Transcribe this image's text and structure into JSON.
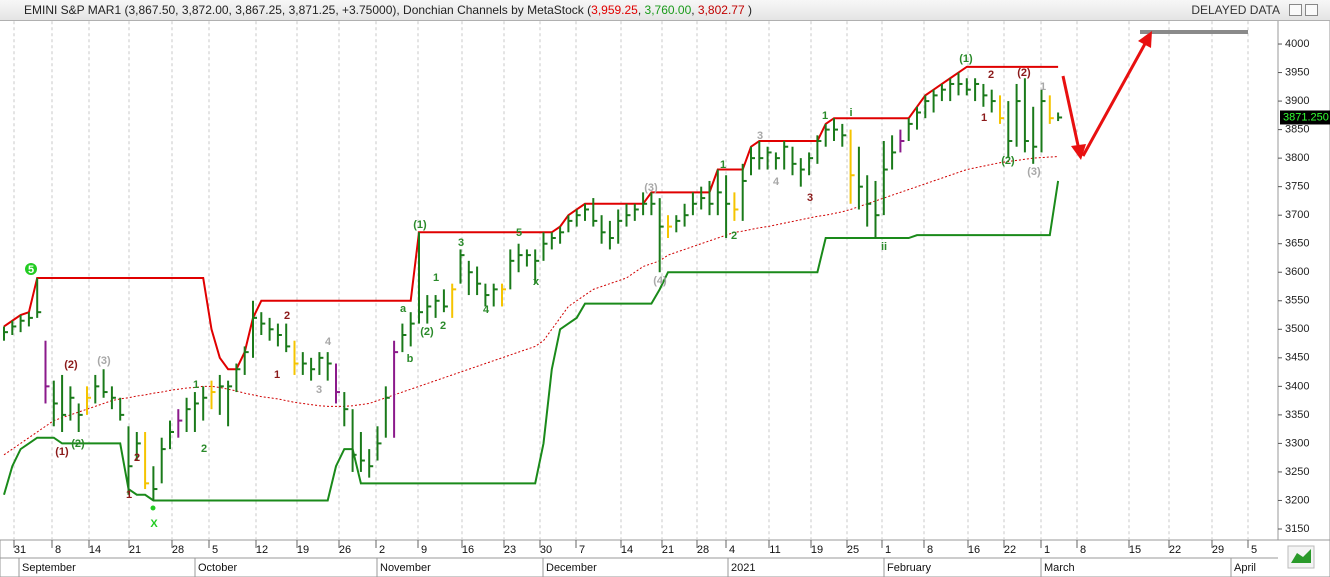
{
  "header": {
    "quote": "EMINI S&P MAR1 (3,867.50, 3,872.00, 3,867.25, 3,871.25, +3.75000), Donchian Channels by MetaStock (",
    "upper": "3,959.25",
    "sep": ", ",
    "lower": "3,760.00",
    "middle": "3,802.77",
    "end": " )",
    "status": "DELAYED DATA"
  },
  "chart_data": {
    "type": "ohlc",
    "ylim": [
      3130,
      4040
    ],
    "yticks": [
      3150,
      3200,
      3250,
      3300,
      3350,
      3400,
      3450,
      3500,
      3550,
      3600,
      3650,
      3700,
      3750,
      3800,
      3850,
      3900,
      3950,
      4000
    ],
    "day_labels": [
      "31",
      "8",
      "14",
      "21",
      "28",
      "5",
      "12",
      "19",
      "26",
      "2",
      "9",
      "16",
      "23",
      "30",
      "7",
      "14",
      "21",
      "28",
      "4",
      "11",
      "19",
      "25",
      "1",
      "8",
      "16",
      "22",
      "1",
      "8",
      "15",
      "22",
      "29",
      "5"
    ],
    "month_labels": [
      "September",
      "October",
      "November",
      "December",
      "2021",
      "February",
      "March",
      "April"
    ],
    "high": [
      3505,
      3515,
      3525,
      3530,
      3590,
      3480,
      3410,
      3420,
      3400,
      3370,
      3400,
      3420,
      3430,
      3400,
      3380,
      3330,
      3320,
      3320,
      3260,
      3310,
      3340,
      3360,
      3380,
      3390,
      3400,
      3410,
      3420,
      3410,
      3440,
      3470,
      3550,
      3530,
      3520,
      3510,
      3510,
      3480,
      3460,
      3450,
      3460,
      3460,
      3440,
      3390,
      3360,
      3320,
      3290,
      3330,
      3400,
      3480,
      3510,
      3530,
      3670,
      3560,
      3560,
      3570,
      3580,
      3640,
      3620,
      3610,
      3580,
      3580,
      3580,
      3640,
      3650,
      3640,
      3640,
      3670,
      3670,
      3680,
      3700,
      3710,
      3720,
      3730,
      3700,
      3690,
      3710,
      3720,
      3720,
      3740,
      3740,
      3730,
      3700,
      3700,
      3720,
      3740,
      3750,
      3760,
      3780,
      3770,
      3740,
      3790,
      3820,
      3830,
      3820,
      3810,
      3830,
      3820,
      3800,
      3810,
      3840,
      3860,
      3870,
      3860,
      3850,
      3820,
      3770,
      3760,
      3830,
      3840,
      3850,
      3870,
      3890,
      3910,
      3920,
      3930,
      3940,
      3950,
      3940,
      3940,
      3930,
      3920,
      3910,
      3900,
      3930,
      3940,
      3890,
      3920,
      3910,
      3880
    ],
    "low": [
      3480,
      3490,
      3495,
      3505,
      3520,
      3370,
      3330,
      3320,
      3340,
      3320,
      3350,
      3370,
      3380,
      3360,
      3340,
      3210,
      3270,
      3220,
      3200,
      3230,
      3290,
      3310,
      3320,
      3320,
      3340,
      3360,
      3350,
      3330,
      3390,
      3420,
      3450,
      3490,
      3480,
      3470,
      3460,
      3420,
      3420,
      3410,
      3420,
      3410,
      3370,
      3330,
      3250,
      3250,
      3240,
      3270,
      3310,
      3310,
      3460,
      3470,
      3510,
      3510,
      3520,
      3530,
      3520,
      3580,
      3560,
      3560,
      3540,
      3540,
      3540,
      3570,
      3600,
      3610,
      3580,
      3620,
      3640,
      3650,
      3670,
      3680,
      3690,
      3680,
      3650,
      3640,
      3650,
      3680,
      3690,
      3700,
      3700,
      3600,
      3660,
      3670,
      3680,
      3700,
      3710,
      3700,
      3700,
      3660,
      3690,
      3690,
      3770,
      3780,
      3780,
      3780,
      3780,
      3770,
      3750,
      3770,
      3790,
      3820,
      3830,
      3820,
      3720,
      3710,
      3680,
      3660,
      3700,
      3780,
      3810,
      3830,
      3850,
      3870,
      3880,
      3900,
      3900,
      3910,
      3910,
      3900,
      3890,
      3880,
      3860,
      3800,
      3820,
      3810,
      3790,
      3810,
      3860,
      3865
    ],
    "close": [
      3495,
      3505,
      3515,
      3520,
      3530,
      3400,
      3370,
      3350,
      3380,
      3350,
      3380,
      3400,
      3390,
      3380,
      3350,
      3260,
      3300,
      3230,
      3220,
      3290,
      3320,
      3340,
      3360,
      3370,
      3380,
      3390,
      3400,
      3400,
      3430,
      3460,
      3520,
      3510,
      3500,
      3490,
      3470,
      3440,
      3440,
      3430,
      3450,
      3440,
      3390,
      3360,
      3280,
      3270,
      3260,
      3300,
      3380,
      3460,
      3490,
      3510,
      3530,
      3540,
      3550,
      3540,
      3570,
      3630,
      3600,
      3580,
      3560,
      3570,
      3570,
      3620,
      3630,
      3630,
      3620,
      3650,
      3660,
      3670,
      3690,
      3700,
      3710,
      3690,
      3670,
      3660,
      3690,
      3700,
      3710,
      3720,
      3720,
      3680,
      3680,
      3690,
      3700,
      3720,
      3730,
      3720,
      3740,
      3720,
      3710,
      3760,
      3800,
      3800,
      3810,
      3800,
      3820,
      3790,
      3780,
      3800,
      3830,
      3850,
      3850,
      3840,
      3770,
      3750,
      3720,
      3700,
      3780,
      3810,
      3830,
      3860,
      3880,
      3900,
      3910,
      3920,
      3930,
      3930,
      3920,
      3930,
      3910,
      3900,
      3870,
      3830,
      3900,
      3830,
      3820,
      3900,
      3870,
      3871.25
    ],
    "last_price_label": "3871.250",
    "bar_colors": [
      "#1a7a1a",
      "#1a7a1a",
      "#1a7a1a",
      "#1a7a1a",
      "#1a7a1a",
      "#8b1a8b",
      "#1a7a1a",
      "#1a7a1a",
      "#1a7a1a",
      "#1a7a1a",
      "#f5c400",
      "#1a7a1a",
      "#1a7a1a",
      "#1a7a1a",
      "#1a7a1a",
      "#1a7a1a",
      "#1a7a1a",
      "#f5c400",
      "#1a7a1a",
      "#1a7a1a",
      "#1a7a1a",
      "#8b1a8b",
      "#1a7a1a",
      "#1a7a1a",
      "#1a7a1a",
      "#f5c400",
      "#1a7a1a",
      "#1a7a1a",
      "#1a7a1a",
      "#1a7a1a",
      "#1a7a1a",
      "#1a7a1a",
      "#1a7a1a",
      "#1a7a1a",
      "#1a7a1a",
      "#f5c400",
      "#1a7a1a",
      "#1a7a1a",
      "#1a7a1a",
      "#1a7a1a",
      "#8b1a8b",
      "#1a7a1a",
      "#1a7a1a",
      "#1a7a1a",
      "#1a7a1a",
      "#1a7a1a",
      "#1a7a1a",
      "#8b1a8b",
      "#1a7a1a",
      "#1a7a1a",
      "#1a7a1a",
      "#1a7a1a",
      "#1a7a1a",
      "#1a7a1a",
      "#f5c400",
      "#1a7a1a",
      "#1a7a1a",
      "#1a7a1a",
      "#1a7a1a",
      "#1a7a1a",
      "#f5c400",
      "#1a7a1a",
      "#1a7a1a",
      "#1a7a1a",
      "#1a7a1a",
      "#1a7a1a",
      "#1a7a1a",
      "#1a7a1a",
      "#1a7a1a",
      "#1a7a1a",
      "#1a7a1a",
      "#1a7a1a",
      "#1a7a1a",
      "#1a7a1a",
      "#1a7a1a",
      "#1a7a1a",
      "#1a7a1a",
      "#1a7a1a",
      "#1a7a1a",
      "#1a7a1a",
      "#f5c400",
      "#1a7a1a",
      "#1a7a1a",
      "#1a7a1a",
      "#1a7a1a",
      "#1a7a1a",
      "#1a7a1a",
      "#1a7a1a",
      "#f5c400",
      "#1a7a1a",
      "#1a7a1a",
      "#1a7a1a",
      "#1a7a1a",
      "#1a7a1a",
      "#1a7a1a",
      "#1a7a1a",
      "#1a7a1a",
      "#1a7a1a",
      "#1a7a1a",
      "#1a7a1a",
      "#1a7a1a",
      "#1a7a1a",
      "#f5c400",
      "#1a7a1a",
      "#1a7a1a",
      "#1a7a1a",
      "#1a7a1a",
      "#1a7a1a",
      "#8b1a8b",
      "#1a7a1a",
      "#1a7a1a",
      "#1a7a1a",
      "#1a7a1a",
      "#1a7a1a",
      "#1a7a1a",
      "#1a7a1a",
      "#1a7a1a",
      "#1a7a1a",
      "#1a7a1a",
      "#1a7a1a",
      "#f5c400",
      "#1a7a1a",
      "#1a7a1a",
      "#1a7a1a",
      "#1a7a1a",
      "#1a7a1a",
      "#f5c400",
      "#1a7a1a"
    ],
    "lines": [
      {
        "color": "#e00000",
        "style": "solid",
        "values": [
          3505,
          3515,
          3525,
          3530,
          3590,
          3590,
          3590,
          3590,
          3590,
          3590,
          3590,
          3590,
          3590,
          3590,
          3590,
          3590,
          3590,
          3590,
          3590,
          3590,
          3590,
          3590,
          3590,
          3590,
          3590,
          3500,
          3450,
          3430,
          3430,
          3460,
          3520,
          3550,
          3550,
          3550,
          3550,
          3550,
          3550,
          3550,
          3550,
          3550,
          3550,
          3550,
          3550,
          3550,
          3550,
          3550,
          3550,
          3550,
          3550,
          3550,
          3670,
          3670,
          3670,
          3670,
          3670,
          3670,
          3670,
          3670,
          3670,
          3670,
          3670,
          3670,
          3670,
          3670,
          3670,
          3670,
          3670,
          3680,
          3700,
          3710,
          3720,
          3720,
          3720,
          3720,
          3720,
          3720,
          3720,
          3720,
          3740,
          3740,
          3740,
          3740,
          3740,
          3740,
          3740,
          3740,
          3780,
          3780,
          3780,
          3780,
          3820,
          3830,
          3830,
          3830,
          3830,
          3830,
          3830,
          3830,
          3830,
          3860,
          3870,
          3870,
          3870,
          3870,
          3870,
          3870,
          3870,
          3870,
          3870,
          3870,
          3890,
          3910,
          3920,
          3930,
          3940,
          3950,
          3960,
          3960,
          3960,
          3960,
          3960,
          3960,
          3960,
          3960,
          3960,
          3960,
          3960,
          3960
        ]
      },
      {
        "color": "#1a8a1a",
        "style": "solid",
        "values": [
          3210,
          3260,
          3290,
          3300,
          3310,
          3310,
          3310,
          3300,
          3300,
          3300,
          3300,
          3300,
          3300,
          3300,
          3300,
          3220,
          3210,
          3210,
          3200,
          3200,
          3200,
          3200,
          3200,
          3200,
          3200,
          3200,
          3200,
          3200,
          3200,
          3200,
          3200,
          3200,
          3200,
          3200,
          3200,
          3200,
          3200,
          3200,
          3200,
          3200,
          3260,
          3290,
          3290,
          3230,
          3230,
          3230,
          3230,
          3230,
          3230,
          3230,
          3230,
          3230,
          3230,
          3230,
          3230,
          3230,
          3230,
          3230,
          3230,
          3230,
          3230,
          3230,
          3230,
          3230,
          3230,
          3300,
          3430,
          3500,
          3510,
          3520,
          3545,
          3545,
          3545,
          3545,
          3545,
          3545,
          3545,
          3545,
          3545,
          3570,
          3600,
          3600,
          3600,
          3600,
          3600,
          3600,
          3600,
          3600,
          3600,
          3600,
          3600,
          3600,
          3600,
          3600,
          3600,
          3600,
          3600,
          3600,
          3600,
          3660,
          3660,
          3660,
          3660,
          3660,
          3660,
          3660,
          3660,
          3660,
          3660,
          3660,
          3665,
          3665,
          3665,
          3665,
          3665,
          3665,
          3665,
          3665,
          3665,
          3665,
          3665,
          3665,
          3665,
          3665,
          3665,
          3665,
          3665,
          3760
        ]
      },
      {
        "color": "#d00000",
        "style": "dotted",
        "values": [
          3280,
          3290,
          3300,
          3310,
          3320,
          3330,
          3340,
          3345,
          3350,
          3355,
          3360,
          3365,
          3370,
          3375,
          3378,
          3380,
          3383,
          3385,
          3388,
          3390,
          3393,
          3395,
          3397,
          3398,
          3400,
          3400,
          3398,
          3395,
          3392,
          3388,
          3385,
          3382,
          3380,
          3378,
          3375,
          3372,
          3370,
          3368,
          3366,
          3365,
          3365,
          3365,
          3366,
          3368,
          3370,
          3375,
          3380,
          3385,
          3390,
          3395,
          3400,
          3405,
          3410,
          3415,
          3420,
          3425,
          3430,
          3435,
          3440,
          3445,
          3450,
          3455,
          3460,
          3465,
          3470,
          3480,
          3500,
          3520,
          3540,
          3550,
          3560,
          3570,
          3575,
          3580,
          3585,
          3590,
          3600,
          3610,
          3615,
          3620,
          3630,
          3635,
          3640,
          3645,
          3650,
          3655,
          3660,
          3665,
          3670,
          3672,
          3675,
          3678,
          3680,
          3683,
          3686,
          3689,
          3692,
          3695,
          3698,
          3700,
          3703,
          3706,
          3710,
          3715,
          3720,
          3725,
          3730,
          3735,
          3740,
          3745,
          3750,
          3755,
          3760,
          3765,
          3770,
          3775,
          3780,
          3783,
          3786,
          3789,
          3792,
          3794,
          3796,
          3798,
          3800,
          3801,
          3802,
          3802.77
        ]
      }
    ],
    "annotations": [
      {
        "text": "5",
        "color": "#22cc22"
      },
      {
        "text": "(2)",
        "color": "#8b1a1a"
      },
      {
        "text": "(3)",
        "color": "#a8a8a8"
      },
      {
        "text": "(1)",
        "color": "#8b1a1a"
      },
      {
        "text": "(2)",
        "color": "#2a8a2a"
      },
      {
        "text": "1",
        "color": "#8b1a1a"
      },
      {
        "text": "2",
        "color": "#8b1a1a"
      },
      {
        "text": "X",
        "color": "#22cc22"
      },
      {
        "text": "1",
        "color": "#2a8a2a"
      },
      {
        "text": "2",
        "color": "#2a8a2a"
      },
      {
        "text": "1",
        "color": "#8b1a1a"
      },
      {
        "text": "2",
        "color": "#8b1a1a"
      },
      {
        "text": "4",
        "color": "#a8a8a8"
      },
      {
        "text": "3",
        "color": "#a8a8a8"
      },
      {
        "text": "(1)",
        "color": "#2a8a2a"
      },
      {
        "text": "a",
        "color": "#2a8a2a"
      },
      {
        "text": "b",
        "color": "#2a8a2a"
      },
      {
        "text": "(2)",
        "color": "#2a8a2a"
      },
      {
        "text": "1",
        "color": "#2a8a2a"
      },
      {
        "text": "2",
        "color": "#2a8a2a"
      },
      {
        "text": "3",
        "color": "#2a8a2a"
      },
      {
        "text": "4",
        "color": "#2a8a2a"
      },
      {
        "text": "5",
        "color": "#2a8a2a"
      },
      {
        "text": "x",
        "color": "#2a8a2a"
      },
      {
        "text": "(3)",
        "color": "#a8a8a8"
      },
      {
        "text": "(4)",
        "color": "#a8a8a8"
      },
      {
        "text": "1",
        "color": "#2a8a2a"
      },
      {
        "text": "2",
        "color": "#2a8a2a"
      },
      {
        "text": "3",
        "color": "#a8a8a8"
      },
      {
        "text": "4",
        "color": "#a8a8a8"
      },
      {
        "text": "3",
        "color": "#8b1a1a"
      },
      {
        "text": "1",
        "color": "#2a8a2a"
      },
      {
        "text": "i",
        "color": "#2a8a2a"
      },
      {
        "text": "ii",
        "color": "#2a8a2a"
      },
      {
        "text": "(1)",
        "color": "#2a8a2a"
      },
      {
        "text": "2",
        "color": "#8b1a1a"
      },
      {
        "text": "(2)",
        "color": "#8b1a1a"
      },
      {
        "text": "1",
        "color": "#8b1a1a"
      },
      {
        "text": "(2)",
        "color": "#2a8a2a"
      },
      {
        "text": "(3)",
        "color": "#a8a8a8"
      },
      {
        "text": "1",
        "color": "#a8a8a8"
      }
    ]
  }
}
